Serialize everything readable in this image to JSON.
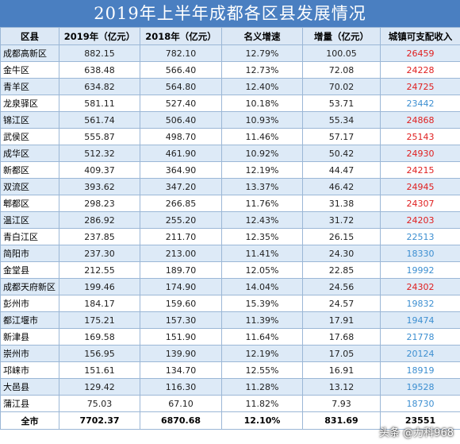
{
  "title": "2019年上半年成都各区县发展情况",
  "headers": [
    "区县",
    "2019年（亿元）",
    "2018年（亿元）",
    "名义增速",
    "增量（亿元）",
    "城镇可支配收入"
  ],
  "rows": [
    {
      "name": "成都高新区",
      "y2019": "882.15",
      "y2018": "782.10",
      "growth": "12.79%",
      "delta": "100.05",
      "income": "26459",
      "color": "red"
    },
    {
      "name": "金牛区",
      "y2019": "638.48",
      "y2018": "566.40",
      "growth": "12.73%",
      "delta": "72.08",
      "income": "24228",
      "color": "red"
    },
    {
      "name": "青羊区",
      "y2019": "634.82",
      "y2018": "564.80",
      "growth": "12.40%",
      "delta": "70.02",
      "income": "24725",
      "color": "red"
    },
    {
      "name": "龙泉驿区",
      "y2019": "581.11",
      "y2018": "527.40",
      "growth": "10.18%",
      "delta": "53.71",
      "income": "23442",
      "color": "blue"
    },
    {
      "name": "锦江区",
      "y2019": "561.74",
      "y2018": "506.40",
      "growth": "10.93%",
      "delta": "55.34",
      "income": "24868",
      "color": "red"
    },
    {
      "name": "武侯区",
      "y2019": "555.87",
      "y2018": "498.70",
      "growth": "11.46%",
      "delta": "57.17",
      "income": "25143",
      "color": "red"
    },
    {
      "name": "成华区",
      "y2019": "512.32",
      "y2018": "461.90",
      "growth": "10.92%",
      "delta": "50.42",
      "income": "24930",
      "color": "red"
    },
    {
      "name": "新都区",
      "y2019": "409.37",
      "y2018": "364.90",
      "growth": "12.19%",
      "delta": "44.47",
      "income": "24215",
      "color": "red"
    },
    {
      "name": "双流区",
      "y2019": "393.62",
      "y2018": "347.20",
      "growth": "13.37%",
      "delta": "46.42",
      "income": "24945",
      "color": "red"
    },
    {
      "name": "郫都区",
      "y2019": "298.23",
      "y2018": "266.85",
      "growth": "11.76%",
      "delta": "31.38",
      "income": "24307",
      "color": "red"
    },
    {
      "name": "温江区",
      "y2019": "286.92",
      "y2018": "255.20",
      "growth": "12.43%",
      "delta": "31.72",
      "income": "24203",
      "color": "red"
    },
    {
      "name": "青白江区",
      "y2019": "237.85",
      "y2018": "211.70",
      "growth": "12.35%",
      "delta": "26.15",
      "income": "22513",
      "color": "blue"
    },
    {
      "name": "简阳市",
      "y2019": "237.30",
      "y2018": "213.00",
      "growth": "11.41%",
      "delta": "24.30",
      "income": "18330",
      "color": "blue"
    },
    {
      "name": "金堂县",
      "y2019": "212.55",
      "y2018": "189.70",
      "growth": "12.05%",
      "delta": "22.85",
      "income": "19992",
      "color": "blue"
    },
    {
      "name": "成都天府新区",
      "y2019": "199.46",
      "y2018": "174.90",
      "growth": "14.04%",
      "delta": "24.56",
      "income": "24302",
      "color": "red"
    },
    {
      "name": "彭州市",
      "y2019": "184.17",
      "y2018": "159.60",
      "growth": "15.39%",
      "delta": "24.57",
      "income": "19832",
      "color": "blue"
    },
    {
      "name": "都江堰市",
      "y2019": "175.21",
      "y2018": "157.30",
      "growth": "11.39%",
      "delta": "17.91",
      "income": "19474",
      "color": "blue"
    },
    {
      "name": "新津县",
      "y2019": "169.58",
      "y2018": "151.90",
      "growth": "11.64%",
      "delta": "17.68",
      "income": "21778",
      "color": "blue"
    },
    {
      "name": "崇州市",
      "y2019": "156.95",
      "y2018": "139.90",
      "growth": "12.19%",
      "delta": "17.05",
      "income": "20124",
      "color": "blue"
    },
    {
      "name": "邛崃市",
      "y2019": "151.61",
      "y2018": "134.70",
      "growth": "12.55%",
      "delta": "16.91",
      "income": "18919",
      "color": "blue"
    },
    {
      "name": "大邑县",
      "y2019": "129.42",
      "y2018": "116.30",
      "growth": "11.28%",
      "delta": "13.12",
      "income": "19528",
      "color": "blue"
    },
    {
      "name": "蒲江县",
      "y2019": "75.03",
      "y2018": "67.10",
      "growth": "11.82%",
      "delta": "7.93",
      "income": "18730",
      "color": "blue"
    }
  ],
  "total": {
    "name": "全市",
    "y2019": "7702.37",
    "y2018": "6870.68",
    "growth": "12.10%",
    "delta": "831.69",
    "income": "23551"
  },
  "watermark": "头条 @力科968",
  "colors": {
    "title_bg": "#4a7fc1",
    "row_alt": "#ddeaf7",
    "income_high": "#e02020",
    "income_low": "#3d8fd1"
  }
}
